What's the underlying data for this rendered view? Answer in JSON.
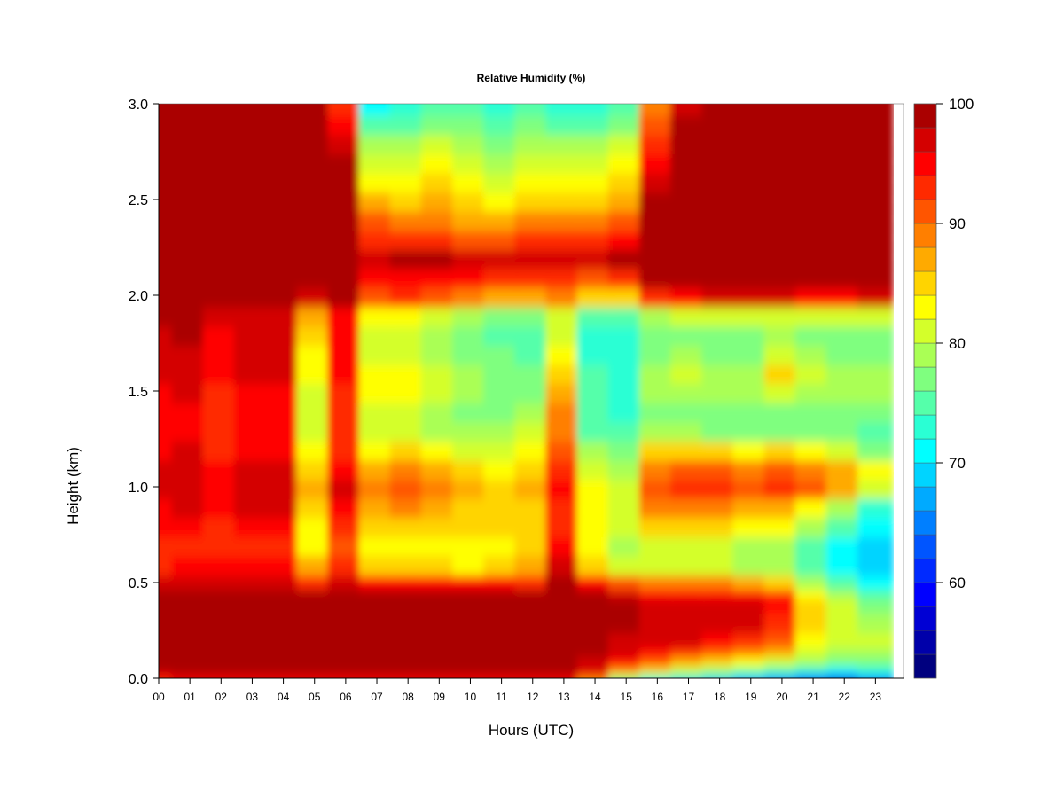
{
  "chart_data": {
    "type": "heatmap",
    "title": "Relative Humidity (%)",
    "xlabel": "Hours (UTC)",
    "ylabel": "Height (km)",
    "xlim": [
      0,
      23.9
    ],
    "ylim": [
      0,
      3.0
    ],
    "x_ticks": [
      0,
      1,
      2,
      3,
      4,
      5,
      6,
      7,
      8,
      9,
      10,
      11,
      12,
      13,
      14,
      15,
      16,
      17,
      18,
      19,
      20,
      21,
      22,
      23
    ],
    "x_tick_labels": [
      "00",
      "01",
      "02",
      "03",
      "04",
      "05",
      "06",
      "07",
      "08",
      "09",
      "10",
      "11",
      "12",
      "13",
      "14",
      "15",
      "16",
      "17",
      "18",
      "19",
      "20",
      "21",
      "22",
      "23"
    ],
    "y_ticks": [
      0.0,
      0.5,
      1.0,
      1.5,
      2.0,
      2.5,
      3.0
    ],
    "y_tick_labels": [
      "0.0",
      "0.5",
      "1.0",
      "1.5",
      "2.0",
      "2.5",
      "3.0"
    ],
    "colorbar": {
      "min": 52,
      "max": 100,
      "step": 2,
      "ticks": [
        100,
        90,
        80,
        70,
        60
      ],
      "tick_labels": [
        "100",
        "90",
        "80",
        "70",
        "60"
      ],
      "colors": [
        "#00007f",
        "#0000aa",
        "#0000d4",
        "#0000ff",
        "#002aff",
        "#0055ff",
        "#007fff",
        "#00aaff",
        "#00d4ff",
        "#00ffff",
        "#2affd4",
        "#55ffaa",
        "#7fff7f",
        "#aaff55",
        "#d4ff2a",
        "#ffff00",
        "#ffd400",
        "#ffaa00",
        "#ff7f00",
        "#ff5500",
        "#ff2a00",
        "#ff0000",
        "#d40000",
        "#aa0000"
      ]
    },
    "height_levels_km": [
      0.0,
      0.025,
      0.05,
      0.1,
      0.15,
      0.2,
      0.3,
      0.4,
      0.45,
      0.5,
      0.6,
      0.7,
      0.8,
      0.9,
      1.0,
      1.1,
      1.2,
      1.3,
      1.4,
      1.5,
      1.6,
      1.7,
      1.8,
      1.9,
      2.0,
      2.1,
      2.2,
      2.3,
      2.4,
      2.5,
      2.6,
      2.7,
      2.8,
      2.9,
      3.0
    ],
    "hours_utc": [
      0,
      1,
      2,
      3,
      4,
      5,
      6,
      7,
      8,
      9,
      10,
      11,
      12,
      13,
      14,
      15,
      16,
      17,
      18,
      19,
      20,
      21,
      22,
      23
    ],
    "rh_values": [
      [
        93,
        95,
        95,
        95,
        95,
        95,
        95,
        94,
        95,
        95,
        95,
        95,
        95,
        94,
        86,
        74,
        70,
        68,
        66,
        63,
        62,
        58,
        56,
        60
      ],
      [
        95,
        97,
        97,
        97,
        97,
        97,
        97,
        96,
        97,
        97,
        97,
        97,
        97,
        97,
        92,
        80,
        76,
        74,
        72,
        70,
        68,
        66,
        64,
        68
      ],
      [
        98,
        99,
        99,
        99,
        99,
        99,
        99,
        98,
        99,
        99,
        99,
        99,
        99,
        99,
        96,
        88,
        84,
        80,
        78,
        76,
        74,
        72,
        70,
        72
      ],
      [
        100,
        100,
        100,
        100,
        100,
        100,
        100,
        100,
        100,
        100,
        100,
        100,
        100,
        100,
        97,
        94,
        90,
        86,
        84,
        82,
        80,
        78,
        76,
        76
      ],
      [
        100,
        100,
        100,
        100,
        100,
        100,
        100,
        100,
        100,
        100,
        100,
        100,
        100,
        100,
        98,
        96,
        94,
        92,
        90,
        88,
        86,
        80,
        78,
        78
      ],
      [
        100,
        100,
        100,
        100,
        100,
        100,
        100,
        100,
        100,
        100,
        100,
        100,
        100,
        100,
        99,
        97,
        96,
        96,
        94,
        92,
        90,
        82,
        80,
        80
      ],
      [
        100,
        100,
        100,
        100,
        100,
        100,
        100,
        100,
        100,
        100,
        100,
        100,
        100,
        100,
        99,
        98,
        97,
        97,
        96,
        96,
        93,
        84,
        80,
        78
      ],
      [
        100,
        100,
        100,
        100,
        100,
        100,
        100,
        100,
        100,
        100,
        100,
        100,
        100,
        100,
        99,
        98,
        97,
        97,
        96,
        96,
        94,
        84,
        80,
        76
      ],
      [
        99,
        100,
        100,
        100,
        100,
        99,
        100,
        99,
        99,
        99,
        99,
        99,
        99,
        100,
        98,
        96,
        95,
        95,
        95,
        94,
        92,
        82,
        78,
        74
      ],
      [
        96,
        97,
        97,
        97,
        97,
        92,
        97,
        94,
        95,
        95,
        94,
        94,
        93,
        98,
        94,
        90,
        88,
        88,
        88,
        86,
        84,
        78,
        74,
        70
      ],
      [
        93,
        94,
        94,
        94,
        94,
        86,
        92,
        84,
        84,
        84,
        82,
        84,
        86,
        96,
        84,
        80,
        80,
        80,
        80,
        78,
        78,
        74,
        70,
        68
      ],
      [
        92,
        93,
        92,
        93,
        93,
        82,
        90,
        82,
        82,
        82,
        82,
        83,
        84,
        94,
        82,
        78,
        80,
        80,
        80,
        78,
        78,
        74,
        70,
        68
      ],
      [
        94,
        95,
        93,
        95,
        95,
        82,
        92,
        84,
        84,
        84,
        84,
        84,
        84,
        92,
        82,
        80,
        84,
        84,
        84,
        82,
        82,
        78,
        74,
        70
      ],
      [
        95,
        96,
        94,
        96,
        96,
        84,
        94,
        86,
        88,
        86,
        84,
        84,
        84,
        92,
        82,
        80,
        88,
        88,
        88,
        86,
        86,
        82,
        78,
        72
      ],
      [
        97,
        97,
        95,
        97,
        97,
        86,
        96,
        88,
        90,
        88,
        86,
        84,
        86,
        94,
        82,
        80,
        90,
        92,
        92,
        90,
        92,
        90,
        86,
        80
      ],
      [
        97,
        97,
        95,
        97,
        97,
        84,
        95,
        86,
        88,
        86,
        84,
        82,
        84,
        92,
        80,
        78,
        88,
        90,
        90,
        88,
        90,
        88,
        86,
        82
      ],
      [
        95,
        96,
        93,
        95,
        95,
        82,
        93,
        82,
        84,
        82,
        80,
        80,
        82,
        90,
        78,
        76,
        84,
        84,
        84,
        82,
        84,
        82,
        80,
        76
      ],
      [
        94,
        95,
        92,
        94,
        94,
        80,
        92,
        80,
        80,
        78,
        78,
        78,
        80,
        88,
        75,
        74,
        78,
        78,
        76,
        76,
        76,
        76,
        76,
        74
      ],
      [
        94,
        95,
        92,
        94,
        94,
        80,
        92,
        80,
        80,
        78,
        76,
        76,
        78,
        88,
        74,
        72,
        76,
        76,
        76,
        76,
        76,
        76,
        76,
        76
      ],
      [
        95,
        96,
        93,
        95,
        95,
        81,
        93,
        82,
        82,
        80,
        78,
        76,
        76,
        86,
        74,
        72,
        78,
        78,
        78,
        78,
        80,
        78,
        78,
        78
      ],
      [
        96,
        97,
        94,
        96,
        96,
        82,
        94,
        82,
        82,
        80,
        78,
        76,
        76,
        84,
        74,
        72,
        78,
        80,
        78,
        78,
        84,
        80,
        78,
        78
      ],
      [
        96,
        97,
        95,
        96,
        96,
        82,
        94,
        80,
        80,
        78,
        76,
        76,
        74,
        82,
        72,
        72,
        76,
        78,
        76,
        76,
        80,
        78,
        76,
        76
      ],
      [
        97,
        98,
        95,
        97,
        97,
        84,
        95,
        80,
        80,
        78,
        76,
        74,
        74,
        80,
        72,
        72,
        76,
        76,
        76,
        76,
        78,
        76,
        76,
        76
      ],
      [
        98,
        98,
        96,
        97,
        97,
        86,
        95,
        82,
        82,
        80,
        78,
        76,
        76,
        80,
        74,
        74,
        78,
        80,
        80,
        80,
        80,
        80,
        80,
        80
      ],
      [
        100,
        100,
        100,
        100,
        100,
        96,
        98,
        90,
        92,
        90,
        88,
        86,
        86,
        88,
        84,
        84,
        92,
        94,
        96,
        96,
        96,
        94,
        94,
        96
      ],
      [
        100,
        100,
        100,
        100,
        100,
        100,
        100,
        94,
        95,
        94,
        94,
        92,
        92,
        92,
        90,
        92,
        98,
        100,
        100,
        100,
        100,
        100,
        100,
        100
      ],
      [
        100,
        100,
        100,
        100,
        100,
        100,
        100,
        96,
        98,
        98,
        96,
        96,
        96,
        96,
        96,
        98,
        100,
        100,
        100,
        100,
        100,
        100,
        100,
        100
      ],
      [
        100,
        100,
        100,
        100,
        100,
        100,
        100,
        92,
        92,
        92,
        90,
        90,
        92,
        92,
        92,
        94,
        100,
        100,
        100,
        100,
        100,
        100,
        100,
        100
      ],
      [
        100,
        100,
        100,
        100,
        100,
        100,
        100,
        90,
        88,
        88,
        86,
        86,
        88,
        88,
        88,
        90,
        100,
        100,
        100,
        100,
        100,
        100,
        100,
        100
      ],
      [
        100,
        100,
        100,
        100,
        100,
        100,
        100,
        86,
        84,
        86,
        84,
        82,
        84,
        84,
        84,
        86,
        98,
        100,
        100,
        100,
        100,
        100,
        100,
        100
      ],
      [
        100,
        100,
        100,
        100,
        100,
        100,
        100,
        82,
        82,
        84,
        82,
        80,
        82,
        82,
        82,
        84,
        96,
        100,
        100,
        100,
        100,
        100,
        100,
        100
      ],
      [
        100,
        100,
        100,
        100,
        100,
        100,
        98,
        80,
        80,
        82,
        80,
        78,
        80,
        80,
        80,
        82,
        94,
        100,
        100,
        100,
        100,
        100,
        100,
        100
      ],
      [
        100,
        100,
        100,
        100,
        100,
        100,
        96,
        78,
        78,
        80,
        78,
        76,
        78,
        78,
        78,
        80,
        92,
        100,
        100,
        100,
        100,
        100,
        100,
        100
      ],
      [
        100,
        100,
        100,
        100,
        100,
        100,
        94,
        74,
        74,
        76,
        76,
        74,
        76,
        74,
        74,
        76,
        90,
        98,
        100,
        100,
        100,
        100,
        100,
        100
      ],
      [
        100,
        100,
        100,
        100,
        100,
        100,
        92,
        70,
        72,
        74,
        74,
        72,
        74,
        72,
        72,
        74,
        88,
        96,
        100,
        100,
        100,
        100,
        100,
        100
      ]
    ]
  }
}
